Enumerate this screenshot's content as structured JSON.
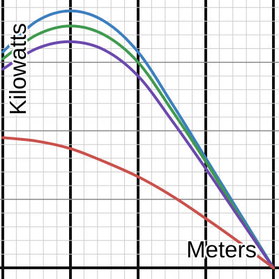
{
  "chart_data": {
    "type": "line",
    "xlabel": "Meters",
    "ylabel": "Kilowatts",
    "xlim": [
      0,
      4
    ],
    "ylim": [
      0,
      3.95
    ],
    "grid": true,
    "series": [
      {
        "color": "#3b7fc0",
        "points": [
          [
            0,
            3.15
          ],
          [
            0.5,
            3.6
          ],
          [
            1,
            3.75
          ],
          [
            1.5,
            3.6
          ],
          [
            2,
            3.15
          ],
          [
            2.5,
            2.4
          ],
          [
            3,
            1.6
          ],
          [
            3.5,
            0.8
          ],
          [
            4,
            0
          ]
        ]
      },
      {
        "color": "#3f9a4f",
        "points": [
          [
            0,
            3.05
          ],
          [
            0.5,
            3.4
          ],
          [
            1,
            3.53
          ],
          [
            1.5,
            3.4
          ],
          [
            2,
            3.0
          ],
          [
            2.5,
            2.3
          ],
          [
            3,
            1.55
          ],
          [
            3.5,
            0.75
          ],
          [
            4,
            0
          ]
        ]
      },
      {
        "color": "#6a48ad",
        "points": [
          [
            0,
            2.9
          ],
          [
            0.5,
            3.2
          ],
          [
            1,
            3.3
          ],
          [
            1.5,
            3.18
          ],
          [
            2,
            2.8
          ],
          [
            2.5,
            2.15
          ],
          [
            3,
            1.45
          ],
          [
            3.5,
            0.72
          ],
          [
            4,
            0
          ]
        ]
      },
      {
        "color": "#c9504b",
        "points": [
          [
            0,
            1.9
          ],
          [
            0.5,
            1.85
          ],
          [
            1,
            1.74
          ],
          [
            1.5,
            1.55
          ],
          [
            2,
            1.33
          ],
          [
            2.5,
            1.05
          ],
          [
            3,
            0.72
          ],
          [
            3.5,
            0.37
          ],
          [
            4,
            0
          ]
        ]
      }
    ]
  }
}
